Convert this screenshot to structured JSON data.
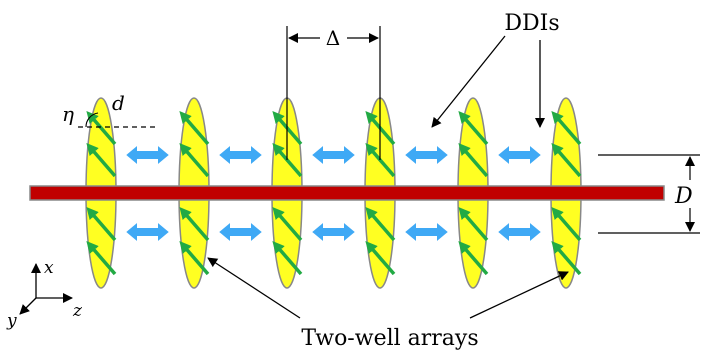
{
  "labels": {
    "ddis": "DDIs",
    "delta": "Δ",
    "eta": "η",
    "d": "d",
    "D": "D",
    "two_well_arrays": "Two-well arrays",
    "axis_x": "x",
    "axis_y": "y",
    "axis_z": "z"
  },
  "colors": {
    "ellipse_fill": "#ffff22",
    "ellipse_stroke": "#888888",
    "rod_fill": "#c00000",
    "rod_stroke": "#888888",
    "dipole_arrow": "#22aa44",
    "interaction_arrow": "#3fa9f5"
  },
  "diagram": {
    "ellipse_count": 6,
    "interaction_arrow_pairs": 5,
    "icon_interaction": "double-headed-arrow",
    "icon_dipole": "diagonal-arrow"
  }
}
